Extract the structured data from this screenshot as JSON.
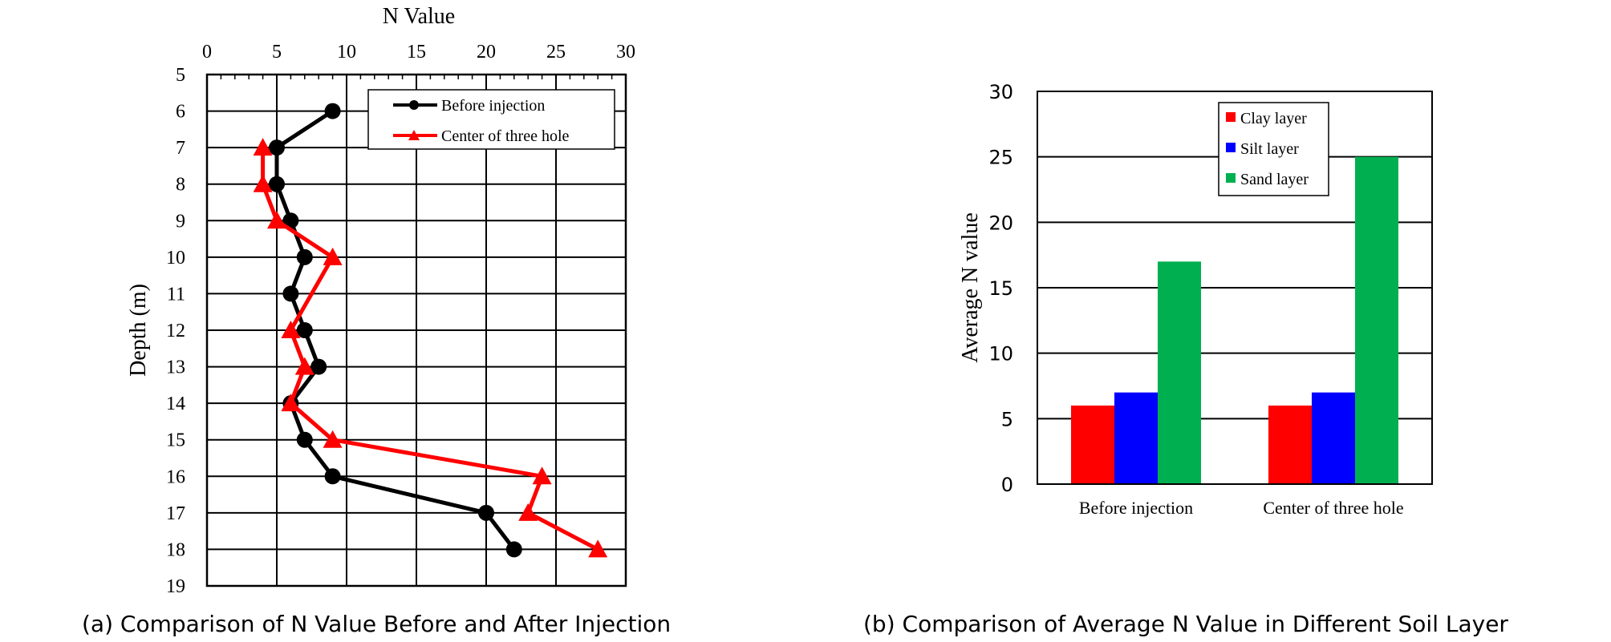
{
  "captions": {
    "a": "(a) Comparison of N Value Before and After Injection",
    "b": "(b) Comparison of Average N Value in Different Soil Layer"
  },
  "chart_data": [
    {
      "type": "line",
      "title": "N Value",
      "xlabel": "N Value",
      "ylabel": "Depth (m)",
      "x_axis_position": "top",
      "y_axis_inverted": true,
      "xlim": [
        0,
        30
      ],
      "ylim": [
        5,
        19
      ],
      "xticks": [
        0,
        5,
        10,
        15,
        20,
        25,
        30
      ],
      "yticks": [
        5,
        6,
        7,
        8,
        9,
        10,
        11,
        12,
        13,
        14,
        15,
        16,
        17,
        18,
        19
      ],
      "grid": true,
      "legend_position": "top-right",
      "series": [
        {
          "name": "Before injection",
          "color": "#000000",
          "marker": "circle",
          "points": [
            {
              "depth": 6,
              "n": 9
            },
            {
              "depth": 7,
              "n": 5
            },
            {
              "depth": 8,
              "n": 5
            },
            {
              "depth": 9,
              "n": 6
            },
            {
              "depth": 10,
              "n": 7
            },
            {
              "depth": 11,
              "n": 6
            },
            {
              "depth": 12,
              "n": 7
            },
            {
              "depth": 13,
              "n": 8
            },
            {
              "depth": 14,
              "n": 6
            },
            {
              "depth": 15,
              "n": 7
            },
            {
              "depth": 16,
              "n": 9
            },
            {
              "depth": 17,
              "n": 20
            },
            {
              "depth": 18,
              "n": 22
            }
          ]
        },
        {
          "name": "Center of three hole",
          "color": "#ff0000",
          "marker": "triangle",
          "points": [
            {
              "depth": 7,
              "n": 4
            },
            {
              "depth": 8,
              "n": 4
            },
            {
              "depth": 9,
              "n": 5
            },
            {
              "depth": 10,
              "n": 9
            },
            {
              "depth": 12,
              "n": 6
            },
            {
              "depth": 13,
              "n": 7
            },
            {
              "depth": 14,
              "n": 6
            },
            {
              "depth": 15,
              "n": 9
            },
            {
              "depth": 16,
              "n": 24
            },
            {
              "depth": 17,
              "n": 23
            },
            {
              "depth": 18,
              "n": 28
            }
          ]
        }
      ]
    },
    {
      "type": "bar",
      "title": "",
      "xlabel": "",
      "ylabel": "Average N value",
      "ylim": [
        0,
        30
      ],
      "yticks": [
        0,
        5,
        10,
        15,
        20,
        25,
        30
      ],
      "grid": true,
      "legend_position": "top-center",
      "categories": [
        "Before injection",
        "Center of three hole"
      ],
      "series": [
        {
          "name": "Clay layer",
          "color": "#ff0000",
          "values": [
            6,
            6
          ]
        },
        {
          "name": "Silt layer",
          "color": "#0000ff",
          "values": [
            7,
            7
          ]
        },
        {
          "name": "Sand layer",
          "color": "#00b050",
          "values": [
            17,
            25
          ]
        }
      ]
    }
  ]
}
